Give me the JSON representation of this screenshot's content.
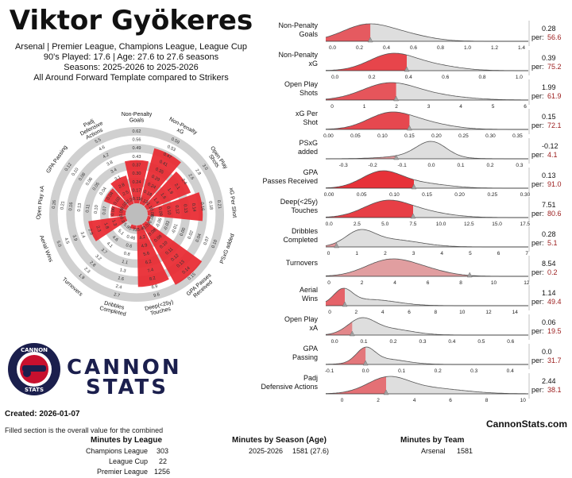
{
  "header": {
    "player_name": "Viktor Gyökeres",
    "line1": "Arsenal | Premier League, Champions League, League Cup",
    "line2": "90's Played: 17.6 | Age: 27.6 to 27.6 seasons",
    "line3": "Seasons: 2025-2026 to 2025-2026",
    "line4": "All Around Forward Template compared to Strikers"
  },
  "brand": {
    "name_top": "CANNON",
    "name_bottom": "STATS",
    "logo_ring_top": "CANNON",
    "logo_ring_bottom": "STATS",
    "navy": "#1b1f4d",
    "red": "#c8102e"
  },
  "footer": {
    "created": "Created: 2026-01-07",
    "note": "Filled section is the overall value for the combined",
    "site": "CannonStats.com",
    "minutes_by_league_title": "Minutes by League",
    "minutes_by_league": [
      {
        "name": "Champions League",
        "minutes": "303"
      },
      {
        "name": "League Cup",
        "minutes": "22"
      },
      {
        "name": "Premier League",
        "minutes": "1256"
      }
    ],
    "minutes_by_season_title": "Minutes by Season (Age)",
    "minutes_by_season": [
      {
        "season": "2025-2026",
        "value": "1581 (27.6)"
      }
    ],
    "minutes_by_team_title": "Minutes by Team",
    "minutes_by_team": [
      {
        "team": "Arsenal",
        "minutes": "1581"
      }
    ]
  },
  "chart_data": [
    {
      "type": "radar",
      "title": "",
      "color": "#e8272f",
      "ring_color": "#d0d0d0",
      "axes": [
        {
          "label": "Non-Penalty Goals",
          "ticks": [
            "0.11",
            "0.17",
            "0.24",
            "0.30",
            "0.37",
            "0.43",
            "0.49",
            "0.56",
            "0.62"
          ],
          "percentile": 56.6
        },
        {
          "label": "Non-Penalty xG",
          "ticks": [
            "0.13",
            "0.18",
            "0.24",
            "0.29",
            "0.35",
            "0.41",
            "0.47",
            "0.53",
            "0.59"
          ],
          "percentile": 75.2
        },
        {
          "label": "Open Play Shots",
          "ticks": [
            "1.1",
            "1.4",
            "1.6",
            "1.9",
            "2.1",
            "2.4",
            "2.6",
            "2.8",
            "3.0"
          ],
          "percentile": 61.9
        },
        {
          "label": "xG Per Shot",
          "ticks": [
            "0.08",
            "0.09",
            "0.10",
            "0.12",
            "0.13",
            "0.14",
            "0.16",
            "0.18",
            "0.21"
          ],
          "percentile": 72.1
        },
        {
          "label": "PSxG added",
          "ticks": [
            "-0.10",
            "-0.06",
            "-0.03",
            "-0.01",
            "0.00",
            "0.02",
            "0.04",
            "0.07",
            "0.10"
          ],
          "percentile": 4.1
        },
        {
          "label": "GPA Passes Received",
          "ticks": [
            "0.07",
            "0.08",
            "0.09",
            "0.10",
            "0.11",
            "0.12",
            "0.13",
            "0.14",
            "0.15"
          ],
          "percentile": 91.0
        },
        {
          "label": "Deep(<25y) Touches",
          "ticks": [
            "3.4",
            "4.2",
            "4.9",
            "5.6",
            "6.2",
            "7.4",
            "8.2",
            "8.9",
            "9.6"
          ],
          "percentile": 80.6
        },
        {
          "label": "Dribbles Completed",
          "ticks": [
            "0.33",
            "0.46",
            "0.6",
            "0.8",
            "1.1",
            "1.3",
            "1.6",
            "2.4",
            "2.7"
          ],
          "percentile": 5.1
        },
        {
          "label": "Turnovers",
          "ticks": [
            "5.9",
            "5.1",
            "4.6",
            "4.1",
            "3.7",
            "3.2",
            "2.8",
            "2.3",
            "1.9"
          ],
          "percentile": 0.2
        },
        {
          "label": "Aerial Wins",
          "ticks": [
            "0.9",
            "1.3",
            "1.8",
            "2.3",
            "2.9",
            "3.4",
            "3.9",
            "4.5",
            "5.0"
          ],
          "percentile": 49.4
        },
        {
          "label": "Open Play xA",
          "ticks": [
            "0.05",
            "0.06",
            "0.07",
            "0.10",
            "0.11",
            "0.13",
            "0.16",
            "0.21",
            "0.26"
          ],
          "percentile": 19.5
        },
        {
          "label": "GPA Passing",
          "ticks": [
            "0.02",
            "0.02",
            "0.04",
            "0.04",
            "0.05",
            "0.06",
            "0.08",
            "0.10",
            "0.12"
          ],
          "percentile": 31.7
        },
        {
          "label": "Padj Defensive Actions",
          "ticks": [
            "2.2",
            "2.5",
            "2.8",
            "3.1",
            "3.4",
            "3.8",
            "4.2",
            "4.6",
            "5.5"
          ],
          "percentile": 38.1
        }
      ]
    },
    {
      "type": "area",
      "title": "",
      "fill_color": "#e8272f",
      "rest_color": "#c8c8c8",
      "value_color": "#9b1b1b",
      "per_label": "per:",
      "panels": [
        {
          "label": [
            "Non-Penalty",
            "Goals"
          ],
          "value": "0.28",
          "percentile": "56.6",
          "marker": 0.28,
          "xmin": -0.05,
          "xmax": 1.45,
          "ticks": [
            0,
            0.2,
            0.4,
            0.6,
            0.8,
            1,
            1.2,
            1.4
          ],
          "tick_labels": [
            "0.0",
            "0.2",
            "0.4",
            "0.6",
            "0.8",
            "1.0",
            "1.2",
            "1.4"
          ],
          "components": [
            [
              0.25,
              0.18,
              1.0
            ],
            [
              0.55,
              0.18,
              0.35
            ]
          ]
        },
        {
          "label": [
            "Non-Penalty",
            "xG"
          ],
          "value": "0.39",
          "percentile": "75.2",
          "marker": 0.39,
          "xmin": -0.05,
          "xmax": 1.05,
          "ticks": [
            0,
            0.2,
            0.4,
            0.6,
            0.8,
            1.0
          ],
          "tick_labels": [
            "0.0",
            "0.2",
            "0.4",
            "0.6",
            "0.8",
            "1.0"
          ],
          "components": [
            [
              0.3,
              0.12,
              1.0
            ],
            [
              0.5,
              0.15,
              0.4
            ]
          ]
        },
        {
          "label": [
            "Open Play",
            "Shots"
          ],
          "value": "1.99",
          "percentile": "61.9",
          "marker": 1.99,
          "xmin": -0.2,
          "xmax": 6.1,
          "ticks": [
            0,
            1,
            2,
            3,
            4,
            5,
            6
          ],
          "tick_labels": [
            "0",
            "1",
            "2",
            "3",
            "4",
            "5",
            "6"
          ],
          "components": [
            [
              1.7,
              0.8,
              1.0
            ],
            [
              2.8,
              1.1,
              0.4
            ]
          ]
        },
        {
          "label": [
            "xG Per",
            "Shot"
          ],
          "value": "0.15",
          "percentile": "72.1",
          "marker": 0.15,
          "xmin": -0.005,
          "xmax": 0.37,
          "ticks": [
            0,
            0.05,
            0.1,
            0.15,
            0.2,
            0.25,
            0.3,
            0.35
          ],
          "tick_labels": [
            "0.00",
            "0.05",
            "0.10",
            "0.15",
            "0.20",
            "0.25",
            "0.30",
            "0.35"
          ],
          "components": [
            [
              0.11,
              0.04,
              1.0
            ],
            [
              0.17,
              0.05,
              0.5
            ]
          ]
        },
        {
          "label": [
            "PSxG",
            "added"
          ],
          "value": "-0.12",
          "percentile": "4.1",
          "marker": -0.12,
          "xmin": -0.36,
          "xmax": 0.33,
          "ticks": [
            -0.3,
            -0.2,
            -0.1,
            0,
            0.1,
            0.2,
            0.3
          ],
          "tick_labels": [
            "-0.3",
            "-0.2",
            "-0.1",
            "0.0",
            "0.1",
            "0.2",
            "0.3"
          ],
          "components": [
            [
              0.0,
              0.05,
              1.0
            ],
            [
              -0.05,
              0.1,
              0.2
            ]
          ]
        },
        {
          "label": [
            "GPA",
            "Passes Received"
          ],
          "value": "0.13",
          "percentile": "91.0",
          "marker": 0.13,
          "xmin": -0.005,
          "xmax": 0.305,
          "ticks": [
            0,
            0.05,
            0.1,
            0.15,
            0.2,
            0.25,
            0.3
          ],
          "tick_labels": [
            "0.00",
            "0.05",
            "0.10",
            "0.15",
            "0.20",
            "0.25",
            "0.30"
          ],
          "components": [
            [
              0.08,
              0.03,
              1.0
            ],
            [
              0.14,
              0.04,
              0.3
            ]
          ]
        },
        {
          "label": [
            "Deep(<25y)",
            "Touches"
          ],
          "value": "7.51",
          "percentile": "80.6",
          "marker": 7.51,
          "xmin": -0.3,
          "xmax": 17.8,
          "ticks": [
            0,
            2.5,
            5,
            7.5,
            10,
            12.5,
            15,
            17.5
          ],
          "tick_labels": [
            "0.0",
            "2.5",
            "5.0",
            "7.5",
            "10.0",
            "12.5",
            "15.0",
            "17.5"
          ],
          "components": [
            [
              5.0,
              2.0,
              1.0
            ],
            [
              8.0,
              2.5,
              0.4
            ]
          ]
        },
        {
          "label": [
            "Dribbles",
            "Completed"
          ],
          "value": "0.28",
          "percentile": "5.1",
          "marker": 0.28,
          "xmin": -0.1,
          "xmax": 7.05,
          "ticks": [
            0,
            1,
            2,
            3,
            4,
            5,
            6,
            7
          ],
          "tick_labels": [
            "0",
            "1",
            "2",
            "3",
            "4",
            "5",
            "6",
            "7"
          ],
          "components": [
            [
              1.1,
              0.5,
              1.0
            ],
            [
              2.2,
              1.0,
              0.55
            ]
          ]
        },
        {
          "label": [
            "Turnovers"
          ],
          "value": "8.54",
          "percentile": "0.2",
          "marker": 8.54,
          "xmin": -0.2,
          "xmax": 12.1,
          "ticks": [
            0,
            2,
            4,
            6,
            8,
            10,
            12
          ],
          "tick_labels": [
            "0",
            "2",
            "4",
            "6",
            "8",
            "10",
            "12"
          ],
          "components": [
            [
              3.5,
              1.4,
              1.0
            ],
            [
              5.5,
              1.5,
              0.5
            ]
          ]
        },
        {
          "label": [
            "Aerial",
            "Wins"
          ],
          "value": "1.14",
          "percentile": "49.4",
          "marker": 1.14,
          "xmin": -0.3,
          "xmax": 15.0,
          "ticks": [
            0,
            2,
            4,
            6,
            8,
            10,
            12,
            14
          ],
          "tick_labels": [
            "0",
            "2",
            "4",
            "6",
            "8",
            "10",
            "12",
            "14"
          ],
          "components": [
            [
              1.0,
              0.7,
              1.0
            ],
            [
              3.0,
              2.0,
              0.45
            ]
          ]
        },
        {
          "label": [
            "Open Play",
            "xA"
          ],
          "value": "0.06",
          "percentile": "19.5",
          "marker": 0.06,
          "xmin": -0.03,
          "xmax": 0.66,
          "ticks": [
            0,
            0.1,
            0.2,
            0.3,
            0.4,
            0.5,
            0.6
          ],
          "tick_labels": [
            "0.0",
            "0.1",
            "0.2",
            "0.3",
            "0.4",
            "0.5",
            "0.6"
          ],
          "components": [
            [
              0.09,
              0.045,
              1.0
            ],
            [
              0.18,
              0.08,
              0.45
            ]
          ]
        },
        {
          "label": [
            "GPA",
            "Passing"
          ],
          "value": "0.0",
          "percentile": "31.7",
          "marker": 0.0,
          "xmin": -0.11,
          "xmax": 0.45,
          "ticks": [
            -0.1,
            0,
            0.1,
            0.2,
            0.3,
            0.4
          ],
          "tick_labels": [
            "-0.1",
            "0.0",
            "0.1",
            "0.2",
            "0.3",
            "0.4"
          ],
          "components": [
            [
              0.0,
              0.025,
              1.0
            ],
            [
              0.05,
              0.06,
              0.4
            ]
          ]
        },
        {
          "label": [
            "Padj",
            "Defensive Actions"
          ],
          "value": "2.44",
          "percentile": "38.1",
          "marker": 2.44,
          "xmin": -0.9,
          "xmax": 10.3,
          "ticks": [
            0,
            2,
            4,
            6,
            8,
            10
          ],
          "tick_labels": [
            "0",
            "2",
            "4",
            "6",
            "8",
            "10"
          ],
          "components": [
            [
              2.5,
              1.1,
              1.0
            ],
            [
              4.5,
              2.0,
              0.45
            ]
          ]
        }
      ]
    }
  ]
}
